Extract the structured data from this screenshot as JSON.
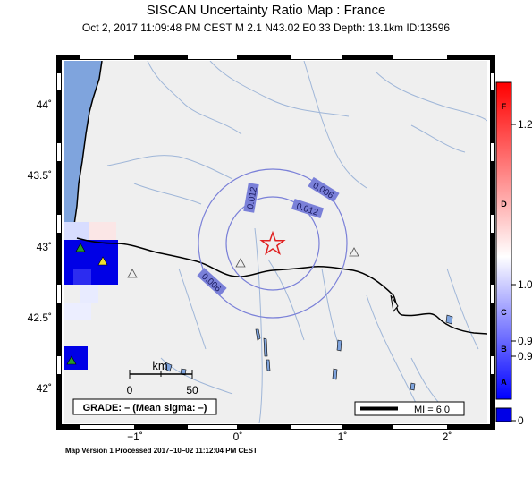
{
  "header": {
    "title": "SISCAN Uncertainty Ratio Map : France",
    "subtitle": "Oct  2, 2017 11:09:48 PM CEST   M 2.1   N43.02 E0.33   Depth: 13.1km   ID:13596"
  },
  "map": {
    "lat_labels": [
      "44˚",
      "43.5˚",
      "43˚",
      "42.5˚",
      "42˚"
    ],
    "lon_labels": [
      "−1˚",
      "0˚",
      "1˚",
      "2˚"
    ],
    "contour_labels": [
      "0.006",
      "0.012",
      "0.012",
      "0.006"
    ],
    "scale": {
      "unit": "km",
      "ticks": [
        "0",
        "50"
      ]
    },
    "grade_box": "GRADE: – (Mean sigma: –)",
    "magnitude_legend": "MI = 6.0",
    "epicenter": {
      "lat": 43.02,
      "lon": 0.33
    }
  },
  "colorbar": {
    "grades": [
      "F",
      "D",
      "C",
      "B",
      "A"
    ],
    "values": [
      "1.2",
      "1.0",
      "0.9",
      "0.9",
      "0"
    ]
  },
  "footer": "Map Version 1 Processed 2017–10–02 11:12:04 PM CEST",
  "colors": {
    "sea": "#7fa4dd",
    "land": "#efefef",
    "rivers": "#9fb6d8",
    "contour": "#7a80d8",
    "epicenter": "#e02020",
    "station_high": "#2a9a2a",
    "station_mid": "#f0e030"
  }
}
